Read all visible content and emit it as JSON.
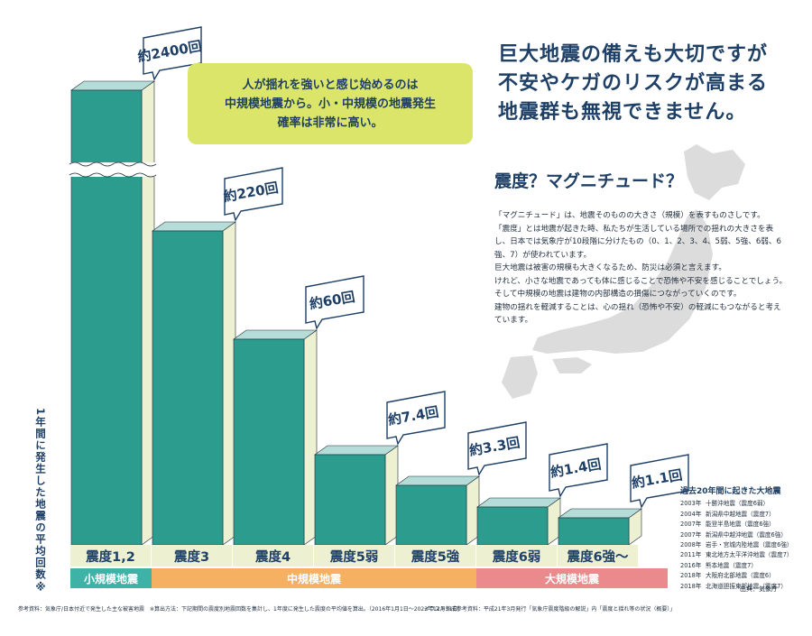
{
  "headline": [
    "巨大地震の備えも大切ですが",
    "不安やケガのリスクが高まる",
    "地震群も無視できません。"
  ],
  "subheading": "震度？マグニチュード？",
  "body": [
    "「マグニチュード」は、地震そのものの大きさ（規模）を表すものさしです。",
    "「震度」とは地震が起きた時、私たちが生活している場所での揺れの大きさを表し、日本では気象庁が10段階に分けたもの（0、1、2、3、4、5弱、5強、6弱、6強、7）が使われています。",
    "巨大地震は被害の規模も大きくなるため、防災は必須と言えます。",
    "けれど、小さな地震であっても体に感じることで恐怖や不安を感じることでしょう。",
    "そして中規模の地震は建物の内部構造の損傷につながっていくのです。",
    "建物の揺れを軽減することは、心の揺れ（恐怖や不安）の軽減にもつながると考えています。"
  ],
  "callout": [
    "人が揺れを強いと感じ始めるのは",
    "中規模地震から。小・中規模の地震発生",
    "確率は非常に高い。"
  ],
  "y_axis_title": "1年間に発生した地震の平均回数※",
  "bands": [
    {
      "label": "小規模地震",
      "color": "#3fb2a8"
    },
    {
      "label": "中規模地震",
      "color": "#f5b062"
    },
    {
      "label": "大規模地震",
      "color": "#ea8a8d"
    }
  ],
  "chart_data": {
    "type": "bar",
    "title": "",
    "xlabel": "",
    "ylabel": "1年間に発生した地震の平均回数※",
    "categories": [
      "震度1,2",
      "震度3",
      "震度4",
      "震度5弱",
      "震度5強",
      "震度6弱",
      "震度6強〜"
    ],
    "values": [
      2400,
      220,
      60,
      7.4,
      3.3,
      1.4,
      1.1
    ],
    "value_labels": [
      "約2400回",
      "約220回",
      "約60回",
      "約7.4回",
      "約3.3回",
      "約1.4回",
      "約1.1回"
    ],
    "scale": "broken (non-linear)",
    "grid": false,
    "colors": {
      "front": "#2c9c8e",
      "side": "#eef0d2",
      "top": "#b5dcd6",
      "edge": "#1f2d3d"
    }
  },
  "major_earthquakes": {
    "title": "過去20年間に起きた大地震",
    "items": [
      {
        "year": "2003年",
        "name": "十勝沖地震（震度6弱）"
      },
      {
        "year": "2004年",
        "name": "新潟県中越地震（震度7）"
      },
      {
        "year": "2007年",
        "name": "能登半島地震（震度6強）"
      },
      {
        "year": "2007年",
        "name": "新潟県中越沖地震（震度6強）"
      },
      {
        "year": "2008年",
        "name": "岩手・宮城内陸地震（震度6強）"
      },
      {
        "year": "2011年",
        "name": "東北地方太平洋沖地震（震度7）"
      },
      {
        "year": "2016年",
        "name": "熊本地震（震度7）"
      },
      {
        "year": "2018年",
        "name": "大阪府北部地震（震度6）"
      },
      {
        "year": "2018年",
        "name": "北海道胆振東部地震（震度7）"
      }
    ]
  },
  "source": "出典：気象庁",
  "footnote_left": "参考資料：気象庁/日本付近で発生した主な被害地震　※算出方法：下記期間の震度別地震回数を集計し、1年度に発生した震度の平均値を算出。（2016年1月1日〜2022年12月31日）",
  "footnote_right": "イラスト作成参考資料：平成21年3月発行「気象庁震度階級の解説」内「震度と揺れ等の状況（概要）」"
}
